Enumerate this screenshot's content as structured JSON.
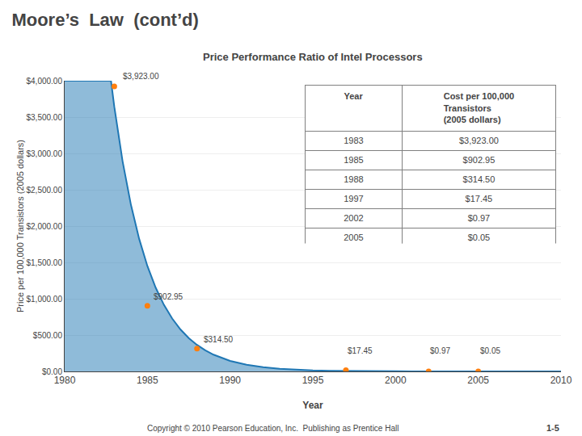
{
  "chart_data": {
    "type": "scatter",
    "title": "Moore’s  Law  (cont’d)",
    "subtitle": "Price Performance Ratio of Intel Processors",
    "xlabel": "Year",
    "ylabel": "Price per 100,000 Transistors (2005 dollars)",
    "series": [
      {
        "type": "area",
        "x": [
          1980,
          1982.8,
          1983,
          1983.5,
          1984,
          1984.5,
          1985,
          1985.5,
          1986,
          1986.5,
          1987,
          1987.5,
          1988,
          1988.5,
          1989,
          1990,
          1991,
          1992,
          1993,
          1994,
          1995,
          1996,
          1997,
          1998,
          1999,
          2000,
          2001,
          2002,
          2003,
          2004,
          2005,
          2006,
          2007,
          2008,
          2009,
          2010
        ],
        "values": [
          4000,
          4000,
          3642.6,
          2893.7,
          2298.8,
          1826.2,
          1450.8,
          1152.5,
          915.6,
          727.4,
          577.8,
          459.0,
          364.6,
          289.7,
          230.1,
          145.2,
          91.64,
          57.83,
          36.5,
          23.03,
          14.53,
          9.17,
          5.79,
          3.65,
          2.3,
          1.45,
          0.92,
          0.58,
          0.37,
          0.23,
          0.15,
          0.09,
          0.06,
          0.04,
          0.02,
          0.01
        ]
      },
      {
        "type": "scatter",
        "x": [
          1983,
          1985,
          1988,
          1997,
          2002,
          2005
        ],
        "values": [
          3923.0,
          902.95,
          314.5,
          17.45,
          0.97,
          0.05
        ]
      }
    ],
    "xlim": [
      1980,
      2010
    ],
    "xticks": [
      1980,
      1985,
      1990,
      1995,
      2000,
      2005,
      2010
    ],
    "ylim": [
      0,
      4000
    ],
    "yticks": [
      {
        "value": 0,
        "label": "$0.00"
      },
      {
        "value": 500,
        "label": "$500.00"
      },
      {
        "value": 1000,
        "label": "$1,000.00"
      },
      {
        "value": 1500,
        "label": "$1,500.00"
      },
      {
        "value": 2000,
        "label": "$2,000.00"
      },
      {
        "value": 2500,
        "label": "$2,500.00"
      },
      {
        "value": 3000,
        "label": "$3,000.00"
      },
      {
        "value": 3500,
        "label": "$3,500.00"
      },
      {
        "value": 4000,
        "label": "$4,000.00"
      }
    ],
    "grid": "y",
    "annotations": [
      {
        "x": 1983.4,
        "y": 3980,
        "text": "$3,923.00"
      },
      {
        "x": 1985.3,
        "y": 950,
        "text": "$902.95"
      },
      {
        "x": 1988.3,
        "y": 355,
        "text": "$314.50"
      },
      {
        "x": 1997.0,
        "y": 200,
        "text": "$17.45"
      },
      {
        "x": 2002.0,
        "y": 200,
        "text": "$0.97"
      },
      {
        "x": 2005.0,
        "y": 200,
        "text": "$0.05"
      }
    ],
    "table": {
      "header": [
        "Year",
        "Cost per 100,000\nTransistors\n(2005 dollars)"
      ],
      "rows": [
        [
          "1983",
          "$3,923.00"
        ],
        [
          "1985",
          "$902.95"
        ],
        [
          "1988",
          "$314.50"
        ],
        [
          "1997",
          "$17.45"
        ],
        [
          "2002",
          "$0.97"
        ],
        [
          "2005",
          "$0.05"
        ]
      ]
    },
    "footer": "Copyright © 2010 Pearson Education, Inc.  Publishing as Prentice Hall",
    "page": "1-5"
  }
}
